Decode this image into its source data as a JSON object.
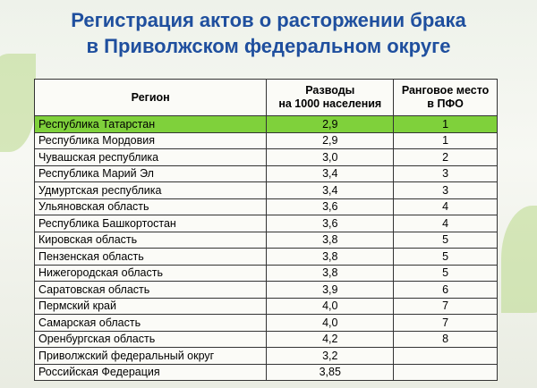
{
  "header": {
    "title": [
      "Регистрация актов о расторжении брака",
      "в Приволжском федеральном округе"
    ]
  },
  "table": {
    "columns": [
      [
        "Регион"
      ],
      [
        "Разводы",
        "на 1000 населения"
      ],
      [
        "Ранговое место",
        "в ПФО"
      ]
    ],
    "highlight_row": 0,
    "rows": [
      [
        "Республика Татарстан",
        "2,9",
        1
      ],
      [
        "Республика Мордовия",
        "2,9",
        1
      ],
      [
        "Чувашская республика",
        "3,0",
        2
      ],
      [
        "Республика Марий Эл",
        "3,4",
        3
      ],
      [
        "Удмуртская республика",
        "3,4",
        3
      ],
      [
        "Ульяновская область",
        "3,6",
        4
      ],
      [
        "Республика Башкортостан",
        "3,6",
        4
      ],
      [
        "Кировская область",
        "3,8",
        5
      ],
      [
        "Пензенская область",
        "3,8",
        5
      ],
      [
        "Нижегородская область",
        "3,8",
        5
      ],
      [
        "Саратовская область",
        "3,9",
        6
      ],
      [
        "Пермский край",
        "4,0",
        7
      ],
      [
        "Самарская область",
        "4,0",
        7
      ],
      [
        "Оренбургская область",
        "4,2",
        8
      ],
      [
        "Приволжский федеральный округ",
        "3,2"
      ],
      [
        "Российская Федерация",
        "3,85"
      ]
    ]
  }
}
